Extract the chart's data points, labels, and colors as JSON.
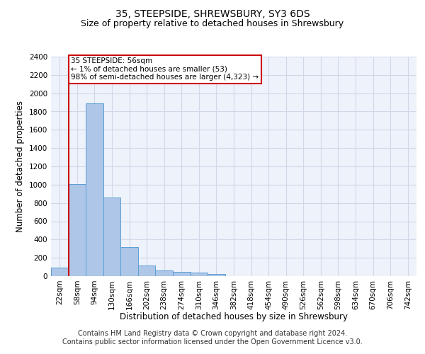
{
  "title1": "35, STEEPSIDE, SHREWSBURY, SY3 6DS",
  "title2": "Size of property relative to detached houses in Shrewsbury",
  "xlabel": "Distribution of detached houses by size in Shrewsbury",
  "ylabel": "Number of detached properties",
  "footer1": "Contains HM Land Registry data © Crown copyright and database right 2024.",
  "footer2": "Contains public sector information licensed under the Open Government Licence v3.0.",
  "categories": [
    "22sqm",
    "58sqm",
    "94sqm",
    "130sqm",
    "166sqm",
    "202sqm",
    "238sqm",
    "274sqm",
    "310sqm",
    "346sqm",
    "382sqm",
    "418sqm",
    "454sqm",
    "490sqm",
    "526sqm",
    "562sqm",
    "598sqm",
    "634sqm",
    "670sqm",
    "706sqm",
    "742sqm"
  ],
  "bar_values": [
    90,
    1010,
    1890,
    860,
    315,
    120,
    60,
    50,
    35,
    25,
    0,
    0,
    0,
    0,
    0,
    0,
    0,
    0,
    0,
    0,
    0
  ],
  "bar_color": "#aec6e8",
  "bar_edge_color": "#5a9fd4",
  "annotation_text": "35 STEEPSIDE: 56sqm\n← 1% of detached houses are smaller (53)\n98% of semi-detached houses are larger (4,323) →",
  "vline_color": "#cc0000",
  "box_color": "#cc0000",
  "ylim": [
    0,
    2400
  ],
  "yticks": [
    0,
    200,
    400,
    600,
    800,
    1000,
    1200,
    1400,
    1600,
    1800,
    2000,
    2200,
    2400
  ],
  "grid_color": "#d0d8e8",
  "background_color": "#eef2fa",
  "title_fontsize": 10,
  "subtitle_fontsize": 9,
  "axis_label_fontsize": 8.5,
  "tick_fontsize": 7.5,
  "footer_fontsize": 7,
  "ann_fontsize": 7.5
}
